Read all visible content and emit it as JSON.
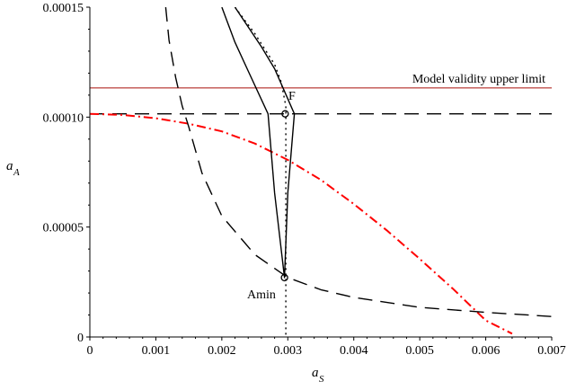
{
  "chart_data": {
    "type": "line",
    "xlabel": {
      "main": "a",
      "sub": "S"
    },
    "ylabel": {
      "main": "a",
      "sub": "A"
    },
    "xlim": [
      0,
      0.007
    ],
    "ylim": [
      0,
      0.00015
    ],
    "x_ticks": [
      "0",
      "0.001",
      "0.002",
      "0.003",
      "0.004",
      "0.005",
      "0.006",
      "0.007"
    ],
    "y_ticks": [
      "0",
      "0.00005",
      "0.00010",
      "0.00015"
    ],
    "x_tick_values": [
      0,
      0.001,
      0.002,
      0.003,
      0.004,
      0.005,
      0.006,
      0.007
    ],
    "y_tick_values": [
      0,
      5e-05,
      0.0001,
      0.00015
    ],
    "grid": false,
    "legend": "none",
    "annotations": {
      "model_validity": "Model validity upper limit",
      "point_f": "F",
      "point_amin": "Amin"
    },
    "series": [
      {
        "style": "solid",
        "color": "#c0504d",
        "x": [
          0,
          0.007
        ],
        "y": [
          0.0001133,
          0.0001133
        ]
      },
      {
        "style": "long-dash",
        "color": "#000000",
        "x": [
          0,
          0.007
        ],
        "y": [
          0.0001015,
          0.0001015
        ]
      },
      {
        "style": "dash-dot",
        "color": "#ff0000",
        "x": [
          0,
          0.0005,
          0.001,
          0.0015,
          0.002,
          0.0025,
          0.003,
          0.0035,
          0.004,
          0.0045,
          0.005,
          0.0055,
          0.006,
          0.0064
        ],
        "y": [
          0.0001015,
          0.000101,
          9.95e-05,
          9.7e-05,
          9.35e-05,
          8.8e-05,
          8.05e-05,
          7.15e-05,
          6.05e-05,
          4.85e-05,
          3.55e-05,
          2.2e-05,
          7.5e-06,
          1.5e-06
        ]
      },
      {
        "style": "long-dash",
        "color": "#000000",
        "x": [
          0.00115,
          0.0012,
          0.0013,
          0.0014,
          0.0015,
          0.0017,
          0.002,
          0.0025,
          0.003,
          0.0035,
          0.004,
          0.005,
          0.006,
          0.007
        ],
        "y": [
          0.00015,
          0.000135,
          0.000118,
          0.000105,
          9.55e-05,
          7.45e-05,
          5.5e-05,
          3.75e-05,
          2.7e-05,
          2.15e-05,
          1.8e-05,
          1.35e-05,
          1.12e-05,
          9.3e-06
        ]
      },
      {
        "style": "dotted",
        "color": "#000000",
        "x": [
          0.0022,
          0.0025,
          0.0028,
          0.0029,
          0.00297,
          0.00297
        ],
        "y": [
          0.00015,
          0.000138,
          0.000124,
          0.000116,
          0.000105,
          0
        ]
      },
      {
        "style": "solid",
        "color": "#000000",
        "x": [
          0.0022,
          0.0024,
          0.0026,
          0.0028,
          0.0031,
          0.003,
          0.00295,
          0.0028,
          0.0027,
          0.0024,
          0.0022,
          0.002
        ],
        "y": [
          0.00015,
          0.000141,
          0.000132,
          0.000122,
          0.0001015,
          6.55e-05,
          2.7e-05,
          6.55e-05,
          0.0001015,
          0.000121,
          0.000134,
          0.00015
        ]
      }
    ],
    "markers": [
      {
        "name": "F",
        "x": 0.00296,
        "y": 0.0001015
      },
      {
        "name": "Amin",
        "x": 0.00295,
        "y": 2.7e-05
      }
    ]
  }
}
